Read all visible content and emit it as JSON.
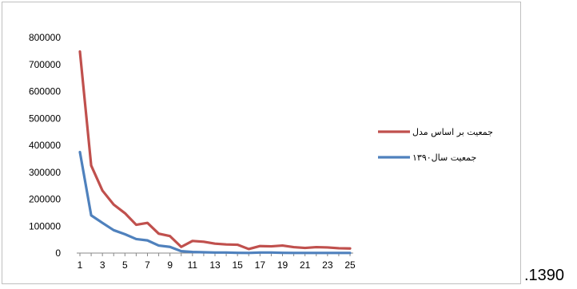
{
  "chart_data": {
    "type": "line",
    "title": "",
    "xlabel": "",
    "ylabel": "",
    "x": [
      1,
      2,
      3,
      4,
      5,
      6,
      7,
      8,
      9,
      10,
      11,
      12,
      13,
      14,
      15,
      16,
      17,
      18,
      19,
      20,
      21,
      22,
      23,
      24,
      25
    ],
    "x_tick_labels": [
      "1",
      "3",
      "5",
      "7",
      "9",
      "11",
      "13",
      "15",
      "17",
      "19",
      "21",
      "23",
      "25"
    ],
    "y_tick_labels": [
      "0",
      "100000",
      "200000",
      "300000",
      "400000",
      "500000",
      "600000",
      "700000",
      "800000"
    ],
    "ylim": [
      0,
      800000
    ],
    "grid": false,
    "legend_position": "right",
    "series": [
      {
        "name": "جمعیت بر اساس مدل",
        "color": "#c0504d",
        "values": [
          748000,
          325000,
          232000,
          180000,
          148000,
          105000,
          112000,
          72000,
          63000,
          23000,
          45000,
          42000,
          35000,
          32000,
          31000,
          15000,
          26000,
          25000,
          28000,
          22000,
          19000,
          22000,
          21000,
          18000,
          17000
        ]
      },
      {
        "name": "جمعیت سال۱۳۹۰",
        "color": "#4f81bd",
        "values": [
          375000,
          140000,
          112000,
          85000,
          70000,
          52000,
          47000,
          28000,
          23000,
          7000,
          4000,
          3000,
          2000,
          2000,
          1000,
          500,
          2000,
          2000,
          1000,
          500,
          500,
          500,
          500,
          500,
          500
        ]
      }
    ]
  },
  "trailing_text": ".1390"
}
